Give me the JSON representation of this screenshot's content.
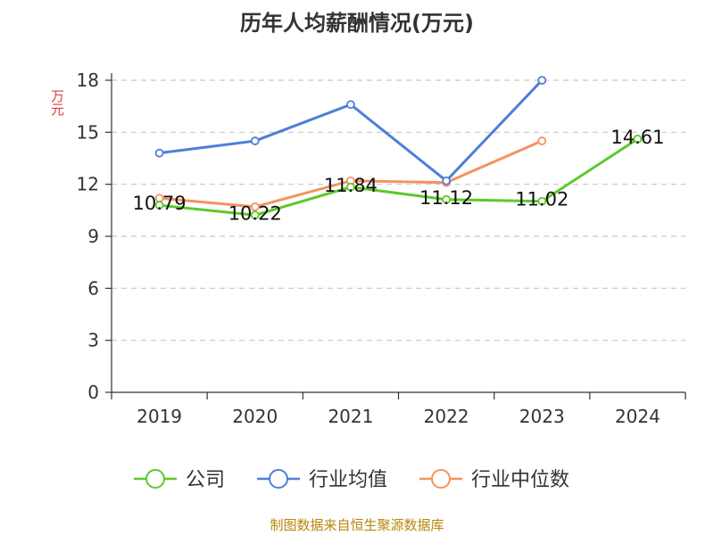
{
  "chart_data": {
    "type": "line",
    "title": "历年人均薪酬情况(万元)",
    "ylabel": "万元",
    "xlabel": "",
    "categories": [
      "2019",
      "2020",
      "2021",
      "2022",
      "2023",
      "2024"
    ],
    "ylim": [
      0,
      18
    ],
    "yticks": [
      0,
      3,
      6,
      9,
      12,
      15,
      18
    ],
    "grid": true,
    "legend_position": "bottom",
    "series": [
      {
        "name": "公司",
        "color": "#5cc82a",
        "values": [
          10.79,
          10.22,
          11.84,
          11.12,
          11.02,
          14.61
        ],
        "labels": [
          "10.79",
          "10.22",
          "11.84",
          "11.12",
          "11.02",
          "14.61"
        ]
      },
      {
        "name": "行业均值",
        "color": "#4d7fd8",
        "values": [
          13.8,
          14.5,
          16.6,
          12.2,
          18.0,
          null
        ]
      },
      {
        "name": "行业中位数",
        "color": "#f5925e",
        "values": [
          11.2,
          10.7,
          12.2,
          12.1,
          14.5,
          null
        ]
      }
    ]
  },
  "footer": {
    "source": "制图数据来自恒生聚源数据库"
  }
}
